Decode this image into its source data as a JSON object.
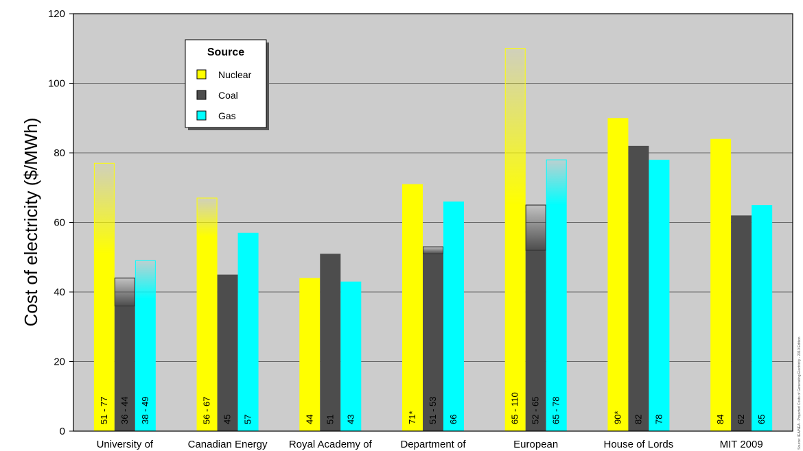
{
  "chart_data": {
    "type": "bar",
    "ylabel": "Cost of electricity ($/MWh)",
    "ylim": [
      0,
      120
    ],
    "yticks": [
      0,
      20,
      40,
      60,
      80,
      100,
      120
    ],
    "grid": true,
    "legend": {
      "title": "Source",
      "position": "top-left"
    },
    "source_note": "Source: IEA/NEA - Projected Costs of Generating Electricity - 2010 Edition",
    "categories": [
      "University of",
      "Canadian Energy",
      "Royal Academy of",
      "Department of",
      "European",
      "House of Lords",
      "MIT 2009"
    ],
    "series": [
      {
        "name": "Nuclear",
        "color": "#ffff00",
        "low": [
          51,
          56,
          44,
          71,
          65,
          90,
          84
        ],
        "high": [
          77,
          67,
          44,
          71,
          110,
          90,
          84
        ],
        "labels": [
          "51 - 77",
          "56 - 67",
          "44",
          "71*",
          "65 - 110",
          "90*",
          "84"
        ]
      },
      {
        "name": "Coal",
        "color": "#4d4d4d",
        "low": [
          36,
          45,
          51,
          51,
          52,
          82,
          62
        ],
        "high": [
          44,
          45,
          51,
          53,
          65,
          82,
          62
        ],
        "labels": [
          "36 - 44",
          "45",
          "51",
          "51 - 53",
          "52 - 65",
          "82",
          "62"
        ]
      },
      {
        "name": "Gas",
        "color": "#00ffff",
        "low": [
          38,
          57,
          43,
          66,
          65,
          78,
          65
        ],
        "high": [
          49,
          57,
          43,
          66,
          78,
          78,
          65
        ],
        "labels": [
          "38 - 49",
          "57",
          "43",
          "66",
          "65 - 78",
          "78",
          "65"
        ]
      }
    ]
  }
}
